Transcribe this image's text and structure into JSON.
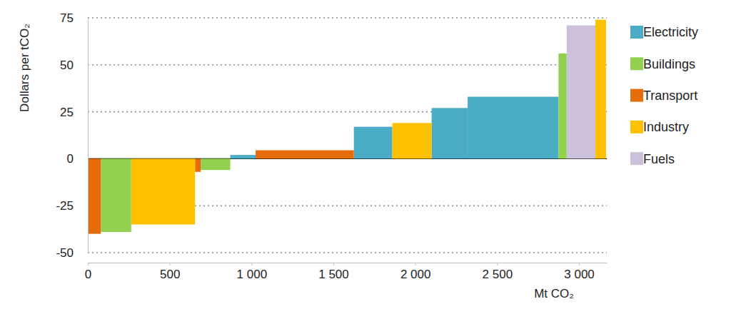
{
  "chart_data": {
    "type": "bar",
    "x_label": "Mt CO₂",
    "y_label": "Dollars per tCO₂",
    "widths": [
      80,
      185,
      390,
      35,
      180,
      155,
      600,
      235,
      240,
      220,
      555,
      50,
      175,
      65
    ],
    "series": [
      {
        "name": "Electricity",
        "color": "#4bacc6",
        "values": [
          null,
          null,
          null,
          null,
          null,
          2,
          null,
          17,
          null,
          27,
          33,
          null,
          null,
          null
        ]
      },
      {
        "name": "Buildings",
        "color": "#92d050",
        "values": [
          null,
          -39,
          null,
          null,
          -6,
          null,
          null,
          null,
          null,
          null,
          null,
          56,
          null,
          null
        ]
      },
      {
        "name": "Transport",
        "color": "#e46c0a",
        "values": [
          -40,
          null,
          null,
          -7,
          null,
          null,
          4.5,
          null,
          null,
          null,
          null,
          null,
          null,
          null
        ]
      },
      {
        "name": "Industry",
        "color": "#ffc000",
        "values": [
          null,
          null,
          -35,
          null,
          null,
          null,
          null,
          null,
          19,
          null,
          null,
          null,
          null,
          74
        ]
      },
      {
        "name": "Fuels",
        "color": "#ccc0da",
        "values": [
          null,
          null,
          null,
          null,
          null,
          null,
          null,
          null,
          null,
          null,
          null,
          null,
          71,
          null
        ]
      }
    ],
    "xlim": [
      0,
      3170
    ],
    "xticks": [
      0,
      500,
      {
        "value": 1000,
        "label": "1 000"
      },
      {
        "value": 1500,
        "label": "1 500"
      },
      {
        "value": 2000,
        "label": "2 000"
      },
      {
        "value": 2500,
        "label": "2 500"
      },
      {
        "value": 3000,
        "label": "3 000"
      }
    ],
    "ylim": [
      -50,
      75
    ],
    "yticks": [
      -50,
      -25,
      0,
      25,
      50,
      75
    ],
    "grid": true,
    "legend": "right"
  }
}
